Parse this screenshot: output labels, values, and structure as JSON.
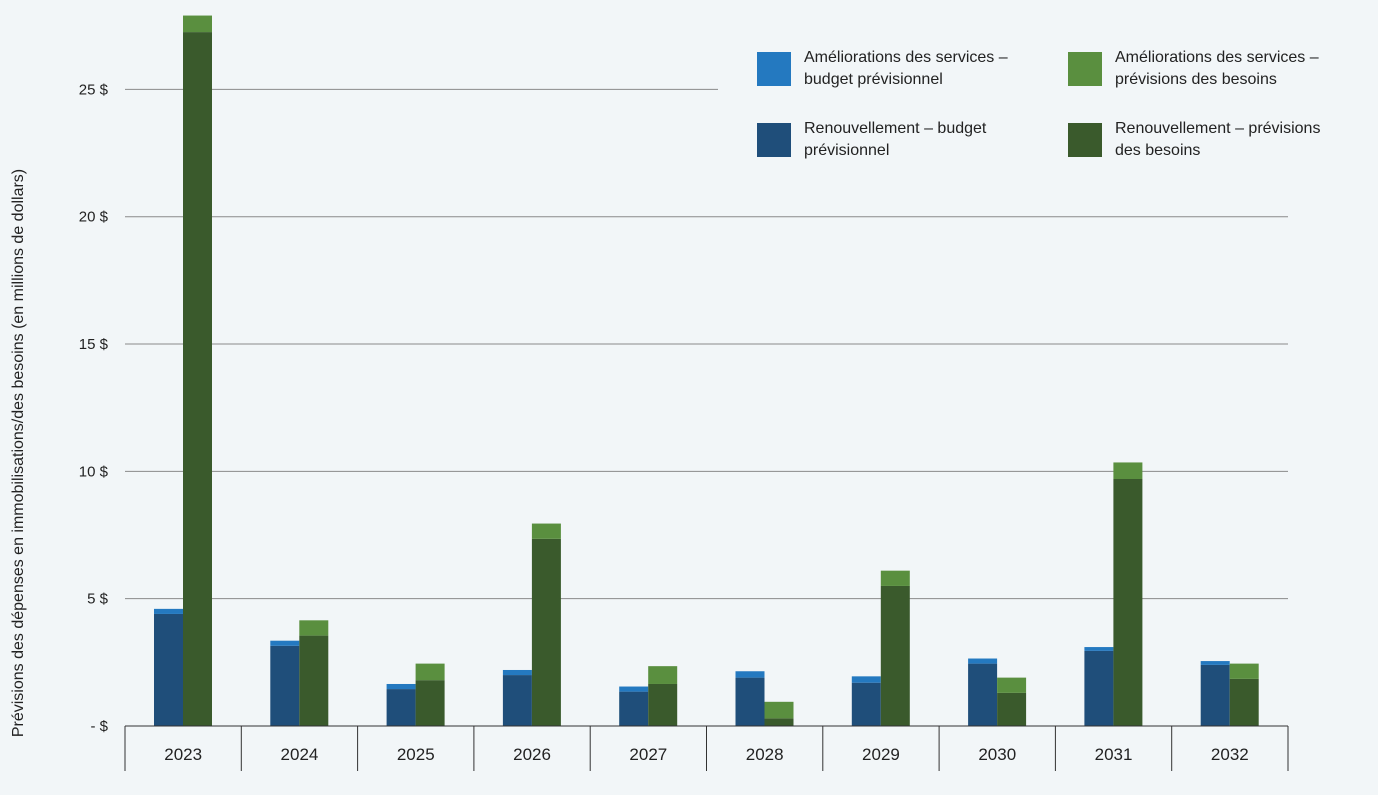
{
  "chart_data": {
    "type": "bar",
    "stacked": true,
    "grouped": true,
    "title": "",
    "xlabel": "",
    "ylabel": "Prévisions des dépenses en immobilisations/des besoins (en millions de dollars)",
    "ylim": [
      0,
      28
    ],
    "yticks": [
      {
        "value": 0,
        "label": "- $"
      },
      {
        "value": 5,
        "label": "5 $"
      },
      {
        "value": 10,
        "label": "10 $"
      },
      {
        "value": 15,
        "label": "15 $"
      },
      {
        "value": 20,
        "label": "20 $"
      },
      {
        "value": 25,
        "label": "25 $"
      }
    ],
    "categories": [
      "2023",
      "2024",
      "2025",
      "2026",
      "2027",
      "2028",
      "2029",
      "2030",
      "2031",
      "2032"
    ],
    "groups": [
      {
        "name": "budget prévisionnel",
        "series": [
          {
            "name": "Renouvellement – budget prévisionnel",
            "color": "#1f4e7a",
            "values": [
              4.4,
              3.15,
              1.45,
              2.0,
              1.35,
              1.9,
              1.7,
              2.45,
              2.95,
              2.4
            ]
          },
          {
            "name": "Améliorations des services – budget prévisionnel",
            "color": "#2479c0",
            "values": [
              0.2,
              0.2,
              0.2,
              0.2,
              0.2,
              0.25,
              0.25,
              0.2,
              0.15,
              0.15
            ]
          }
        ]
      },
      {
        "name": "prévisions des besoins",
        "series": [
          {
            "name": "Renouvellement – prévisions des besoins",
            "color": "#3a5a2c",
            "values": [
              27.25,
              3.55,
              1.8,
              7.35,
              1.65,
              0.3,
              5.5,
              1.3,
              9.7,
              1.85
            ]
          },
          {
            "name": "Améliorations des services – prévisions des besoins",
            "color": "#5a8f3f",
            "values": [
              0.65,
              0.6,
              0.65,
              0.6,
              0.7,
              0.65,
              0.6,
              0.6,
              0.65,
              0.6
            ]
          }
        ]
      }
    ],
    "legend": {
      "placement": "top-right",
      "entries": [
        {
          "label_line1": "Améliorations des services –",
          "label_line2": "budget prévisionnel",
          "color": "#2479c0"
        },
        {
          "label_line1": "Améliorations des services –",
          "label_line2": "prévisions des besoins",
          "color": "#5a8f3f"
        },
        {
          "label_line1": "Renouvellement – budget",
          "label_line2": "prévisionnel",
          "color": "#1f4e7a"
        },
        {
          "label_line1": "Renouvellement – prévisions",
          "label_line2": "des besoins",
          "color": "#3a5a2c"
        }
      ]
    },
    "grid": "horizontal"
  }
}
